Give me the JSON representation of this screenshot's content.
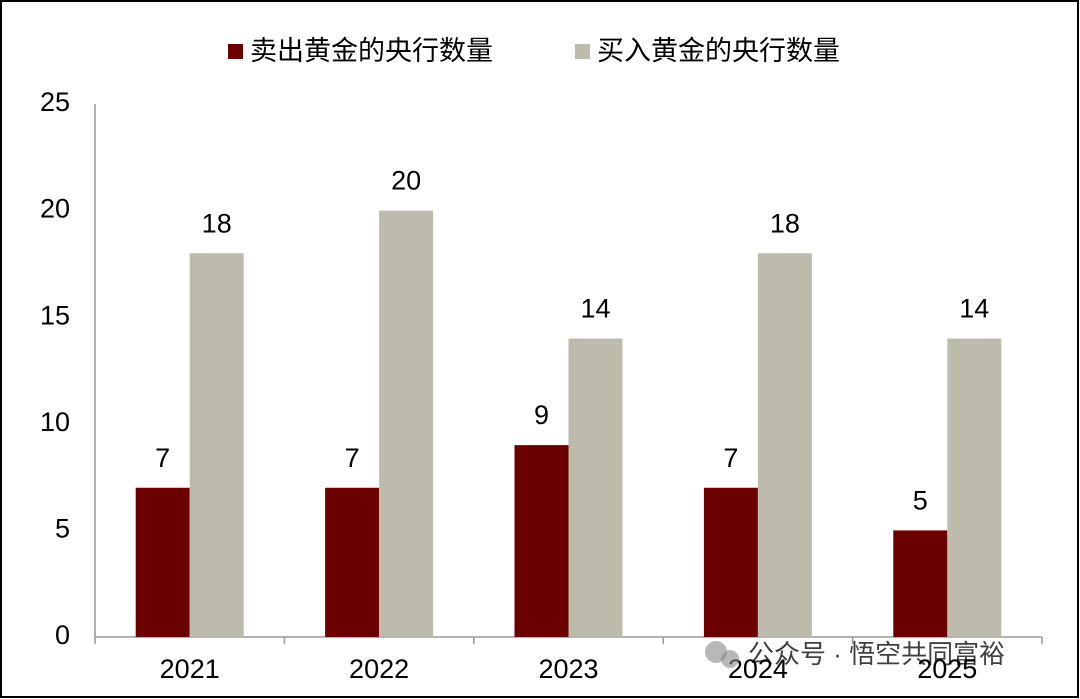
{
  "chart_data": {
    "type": "bar",
    "categories": [
      "2021",
      "2022",
      "2023",
      "2024",
      "2025"
    ],
    "series": [
      {
        "name": "卖出黄金的央行数量",
        "color": "#6b0000",
        "values": [
          7,
          7,
          9,
          7,
          5
        ]
      },
      {
        "name": "买入黄金的央行数量",
        "color": "#bdbbab",
        "values": [
          18,
          20,
          14,
          18,
          14
        ]
      }
    ],
    "ylim": [
      0,
      25
    ],
    "yticks": [
      0,
      5,
      10,
      15,
      20,
      25
    ],
    "grid": false,
    "legend": "top",
    "watermark": "公众号 · 悟空共同富裕"
  }
}
